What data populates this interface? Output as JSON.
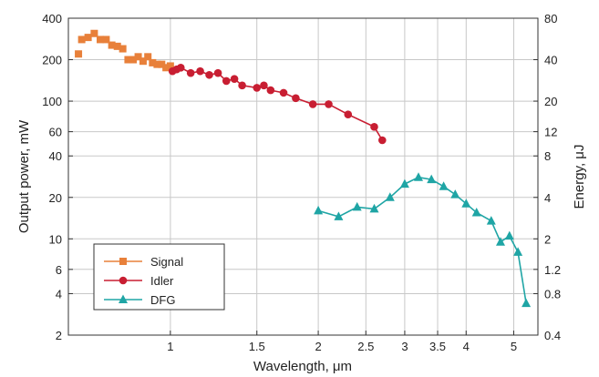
{
  "chart_data": {
    "type": "line",
    "xlabel": "Wavelength, μm",
    "ylabel_left": "Output power, mW",
    "ylabel_right": "Energy, μJ",
    "x_scale": "log",
    "y_scale": "log",
    "xlim": [
      0.62,
      5.6
    ],
    "ylim_left": [
      2,
      400
    ],
    "ylim_right": [
      0.4,
      80
    ],
    "x_ticks": [
      1,
      1.5,
      2,
      2.5,
      3,
      3.5,
      4,
      5
    ],
    "x_tick_labels": [
      "1",
      "1.5",
      "2",
      "2.5",
      "3",
      "3.5",
      "4",
      "5"
    ],
    "y_ticks_left": [
      2,
      4,
      6,
      10,
      20,
      40,
      60,
      100,
      200,
      400
    ],
    "y_tick_labels_left": [
      "2",
      "4",
      "6",
      "10",
      "20",
      "40",
      "60",
      "100",
      "200",
      "400"
    ],
    "y_ticks_right": [
      0.4,
      0.8,
      1.2,
      2,
      4,
      8,
      12,
      20,
      40,
      80
    ],
    "y_tick_labels_right": [
      "0.4",
      "0.8",
      "1.2",
      "2",
      "4",
      "8",
      "12",
      "20",
      "40",
      "80"
    ],
    "grid": true,
    "legend_position": "bottom-left",
    "series": [
      {
        "name": "Signal",
        "color": "#e8803a",
        "marker": "square",
        "line": false,
        "x": [
          0.65,
          0.66,
          0.68,
          0.7,
          0.72,
          0.74,
          0.76,
          0.78,
          0.8,
          0.82,
          0.84,
          0.86,
          0.88,
          0.9,
          0.92,
          0.94,
          0.96,
          0.98,
          1.0
        ],
        "y": [
          220,
          280,
          290,
          310,
          280,
          280,
          255,
          250,
          240,
          200,
          200,
          210,
          195,
          210,
          190,
          185,
          185,
          175,
          180
        ]
      },
      {
        "name": "Idler",
        "color": "#c81e32",
        "marker": "circle",
        "line": true,
        "x": [
          1.01,
          1.03,
          1.05,
          1.1,
          1.15,
          1.2,
          1.25,
          1.3,
          1.35,
          1.4,
          1.5,
          1.55,
          1.6,
          1.7,
          1.8,
          1.95,
          2.1,
          2.3,
          2.6,
          2.7
        ],
        "y": [
          165,
          170,
          175,
          160,
          165,
          155,
          160,
          140,
          145,
          130,
          125,
          130,
          120,
          115,
          105,
          95,
          95,
          80,
          65,
          52
        ]
      },
      {
        "name": "DFG",
        "color": "#1fa5a5",
        "marker": "triangle",
        "line": true,
        "x": [
          2.0,
          2.2,
          2.4,
          2.6,
          2.8,
          3.0,
          3.2,
          3.4,
          3.6,
          3.8,
          4.0,
          4.2,
          4.5,
          4.7,
          4.9,
          5.1,
          5.3
        ],
        "y": [
          16,
          14.5,
          17,
          16.5,
          20,
          25,
          28,
          27,
          24,
          21,
          18,
          15.5,
          13.5,
          9.5,
          10.5,
          8,
          3.4
        ]
      }
    ]
  }
}
